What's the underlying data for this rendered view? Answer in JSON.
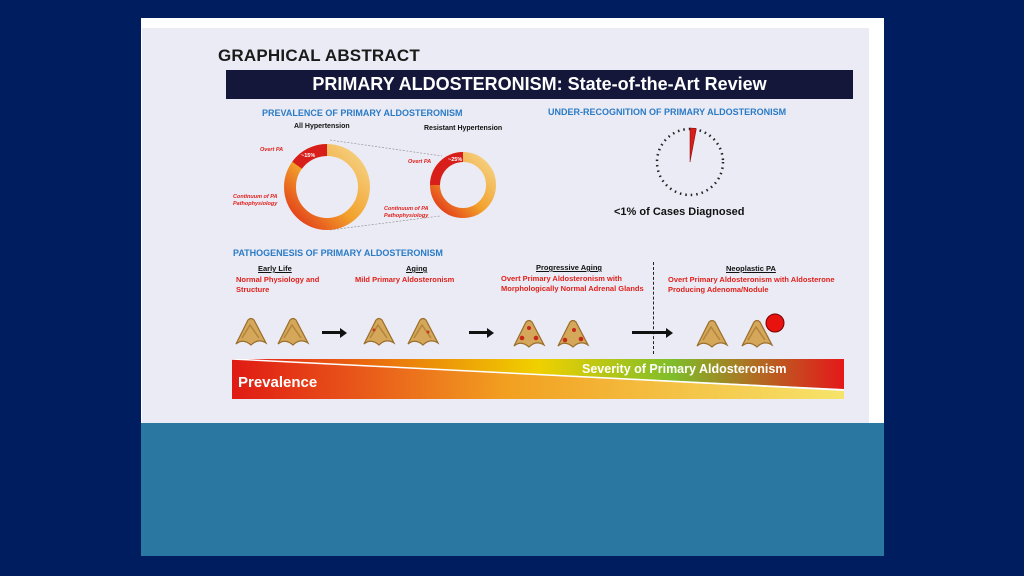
{
  "figure": {
    "heading": "GRAPHICAL ABSTRACT",
    "banner": "PRIMARY ALDOSTERONISM: State-of-the-Art Review",
    "prevalence": {
      "section_title": "PREVALENCE OF PRIMARY ALDOSTERONISM",
      "left_label": "All Hypertension",
      "right_label": "Resistant Hypertension",
      "overt_pa": "Overt PA",
      "left_percent": "~15%",
      "right_percent": "~25%",
      "continuum": "Continuum of PA Pathophysiology",
      "left_value_pct": 15,
      "right_value_pct": 25
    },
    "under_recognition": {
      "section_title": "UNDER-RECOGNITION OF PRIMARY ALDOSTERONISM",
      "caption": "<1% of Cases Diagnosed",
      "value_pct": 1
    },
    "pathogenesis": {
      "section_title": "PATHOGENESIS OF PRIMARY ALDOSTERONISM",
      "stages": [
        {
          "title": "Early Life",
          "text": "Normal Physiology and Structure"
        },
        {
          "title": "Aging",
          "text": "Mild Primary Aldosteronism"
        },
        {
          "title": "Progressive Aging",
          "text": "Overt Primary Aldosteronism with Morphologically Normal Adrenal Glands"
        },
        {
          "title": "Neoplastic PA",
          "text": "Overt Primary Aldosteronism with Aldosterone Producing Adenoma/Nodule"
        }
      ]
    },
    "bar": {
      "left_label": "Prevalence",
      "right_label": "Severity of Primary Aldosteronism"
    },
    "colors": {
      "banner_bg": "#14173a",
      "section_blue": "#2a7bc6",
      "accent_red": "#e0201a",
      "ring_orange": "#f0a020",
      "gland": "#d4a75a"
    }
  }
}
